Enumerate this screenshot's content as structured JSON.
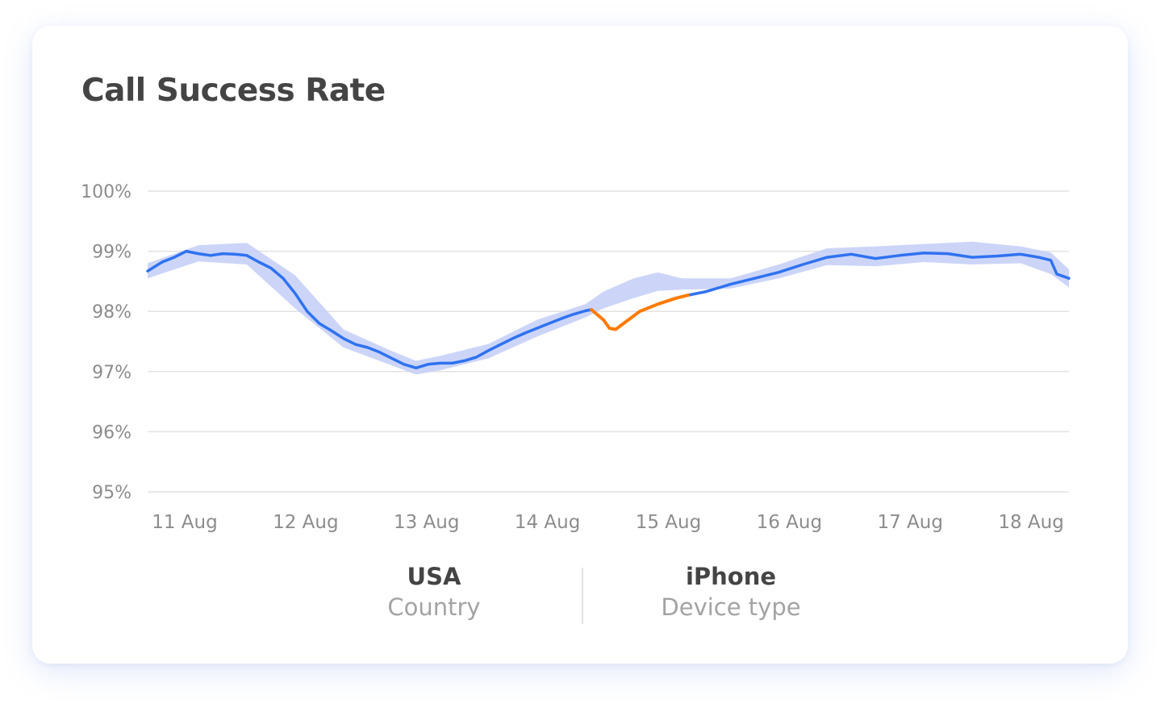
{
  "card": {
    "title": "Call Success Rate"
  },
  "colors": {
    "line": "#2f72f0",
    "anomaly": "#ff7a00",
    "band": "#c3cef7",
    "grid": "#e2e2e2"
  },
  "filters": [
    {
      "value": "USA",
      "label": "Country"
    },
    {
      "value": "iPhone",
      "label": "Device type"
    }
  ],
  "chart_data": {
    "type": "line",
    "title": "Call Success Rate",
    "y_unit": "%",
    "ylim": [
      95,
      100
    ],
    "y_ticks": [
      "100%",
      "99%",
      "98%",
      "97%",
      "96%",
      "95%"
    ],
    "y_tick_values": [
      100,
      99,
      98,
      97,
      96,
      95
    ],
    "x_ticks": [
      "11 Aug",
      "12 Aug",
      "13 Aug",
      "14 Aug",
      "15 Aug",
      "16 Aug",
      "17 Aug",
      "18 Aug"
    ],
    "x_tick_values": [
      0,
      1,
      2,
      3,
      4,
      5,
      6,
      7
    ],
    "xlim": [
      -0.02,
      7.6
    ],
    "grid": true,
    "series": [
      {
        "points": [
          [
            -0.02,
            98.67
          ],
          [
            0.1,
            98.82
          ],
          [
            0.2,
            98.9
          ],
          [
            0.3,
            99.0
          ],
          [
            0.4,
            98.96
          ],
          [
            0.5,
            98.93
          ],
          [
            0.6,
            98.96
          ],
          [
            0.7,
            98.95
          ],
          [
            0.8,
            98.93
          ],
          [
            0.9,
            98.82
          ],
          [
            1.0,
            98.72
          ],
          [
            1.1,
            98.55
          ],
          [
            1.2,
            98.3
          ],
          [
            1.3,
            98.0
          ],
          [
            1.4,
            97.8
          ],
          [
            1.5,
            97.68
          ],
          [
            1.6,
            97.55
          ],
          [
            1.7,
            97.45
          ],
          [
            1.8,
            97.4
          ],
          [
            1.9,
            97.32
          ],
          [
            2.0,
            97.22
          ],
          [
            2.1,
            97.12
          ],
          [
            2.2,
            97.06
          ],
          [
            2.3,
            97.12
          ],
          [
            2.4,
            97.14
          ],
          [
            2.5,
            97.14
          ],
          [
            2.6,
            97.18
          ],
          [
            2.7,
            97.24
          ],
          [
            2.8,
            97.35
          ],
          [
            2.9,
            97.45
          ],
          [
            3.0,
            97.55
          ],
          [
            3.1,
            97.64
          ],
          [
            3.2,
            97.72
          ],
          [
            3.3,
            97.8
          ],
          [
            3.4,
            97.88
          ],
          [
            3.5,
            97.95
          ],
          [
            3.6,
            98.01
          ],
          [
            3.65,
            98.03
          ],
          [
            3.75,
            97.86
          ],
          [
            3.8,
            97.72
          ],
          [
            3.85,
            97.7
          ],
          [
            3.95,
            97.85
          ],
          [
            4.05,
            98.0
          ],
          [
            4.2,
            98.12
          ],
          [
            4.35,
            98.22
          ],
          [
            4.45,
            98.27
          ],
          [
            4.6,
            98.33
          ],
          [
            4.8,
            98.45
          ],
          [
            5.0,
            98.55
          ],
          [
            5.2,
            98.65
          ],
          [
            5.4,
            98.78
          ],
          [
            5.6,
            98.9
          ],
          [
            5.8,
            98.95
          ],
          [
            6.0,
            98.88
          ],
          [
            6.2,
            98.93
          ],
          [
            6.4,
            98.97
          ],
          [
            6.6,
            98.96
          ],
          [
            6.8,
            98.9
          ],
          [
            7.0,
            98.92
          ],
          [
            7.2,
            98.95
          ],
          [
            7.35,
            98.9
          ],
          [
            7.45,
            98.85
          ],
          [
            7.5,
            98.62
          ],
          [
            7.6,
            98.55
          ]
        ],
        "color": "#2f72f0",
        "band": [
          [
            -0.02,
            98.55,
            98.8
          ],
          [
            0.4,
            98.83,
            99.1
          ],
          [
            0.8,
            98.78,
            99.14
          ],
          [
            1.2,
            98.05,
            98.6
          ],
          [
            1.6,
            97.4,
            97.7
          ],
          [
            2.0,
            97.1,
            97.34
          ],
          [
            2.2,
            96.95,
            97.18
          ],
          [
            2.4,
            97.02,
            97.26
          ],
          [
            2.8,
            97.22,
            97.46
          ],
          [
            3.2,
            97.58,
            97.86
          ],
          [
            3.6,
            97.9,
            98.12
          ],
          [
            3.75,
            98.05,
            98.33
          ],
          [
            4.0,
            98.22,
            98.55
          ],
          [
            4.2,
            98.34,
            98.65
          ],
          [
            4.4,
            98.36,
            98.55
          ],
          [
            4.8,
            98.38,
            98.55
          ],
          [
            5.2,
            98.55,
            98.78
          ],
          [
            5.6,
            98.77,
            99.05
          ],
          [
            6.0,
            98.75,
            99.08
          ],
          [
            6.4,
            98.82,
            99.12
          ],
          [
            6.8,
            98.78,
            99.16
          ],
          [
            7.2,
            98.8,
            99.08
          ],
          [
            7.45,
            98.62,
            98.98
          ],
          [
            7.6,
            98.4,
            98.7
          ]
        ]
      }
    ],
    "anomaly": {
      "color": "#ff7a00",
      "x_range": [
        3.65,
        4.45
      ]
    }
  }
}
